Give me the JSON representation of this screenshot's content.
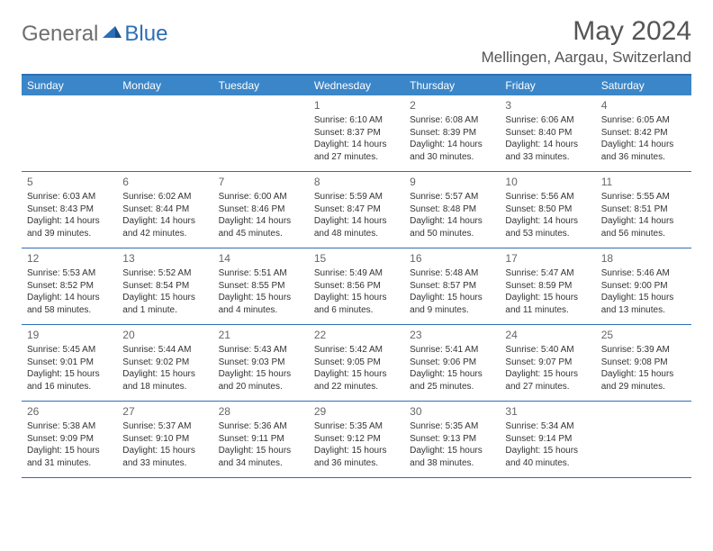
{
  "logo": {
    "part1": "General",
    "part2": "Blue"
  },
  "title": "May 2024",
  "location": "Mellingen, Aargau, Switzerland",
  "colors": {
    "header_bg": "#3b86c8",
    "border": "#2d6fb5",
    "logo_gray": "#6e6e6e",
    "logo_blue": "#2d6fb5",
    "text": "#333333",
    "title_text": "#555555"
  },
  "day_names": [
    "Sunday",
    "Monday",
    "Tuesday",
    "Wednesday",
    "Thursday",
    "Friday",
    "Saturday"
  ],
  "weeks": [
    [
      {
        "n": "",
        "sr": "",
        "ss": "",
        "dl": ""
      },
      {
        "n": "",
        "sr": "",
        "ss": "",
        "dl": ""
      },
      {
        "n": "",
        "sr": "",
        "ss": "",
        "dl": ""
      },
      {
        "n": "1",
        "sr": "Sunrise: 6:10 AM",
        "ss": "Sunset: 8:37 PM",
        "dl": "Daylight: 14 hours and 27 minutes."
      },
      {
        "n": "2",
        "sr": "Sunrise: 6:08 AM",
        "ss": "Sunset: 8:39 PM",
        "dl": "Daylight: 14 hours and 30 minutes."
      },
      {
        "n": "3",
        "sr": "Sunrise: 6:06 AM",
        "ss": "Sunset: 8:40 PM",
        "dl": "Daylight: 14 hours and 33 minutes."
      },
      {
        "n": "4",
        "sr": "Sunrise: 6:05 AM",
        "ss": "Sunset: 8:42 PM",
        "dl": "Daylight: 14 hours and 36 minutes."
      }
    ],
    [
      {
        "n": "5",
        "sr": "Sunrise: 6:03 AM",
        "ss": "Sunset: 8:43 PM",
        "dl": "Daylight: 14 hours and 39 minutes."
      },
      {
        "n": "6",
        "sr": "Sunrise: 6:02 AM",
        "ss": "Sunset: 8:44 PM",
        "dl": "Daylight: 14 hours and 42 minutes."
      },
      {
        "n": "7",
        "sr": "Sunrise: 6:00 AM",
        "ss": "Sunset: 8:46 PM",
        "dl": "Daylight: 14 hours and 45 minutes."
      },
      {
        "n": "8",
        "sr": "Sunrise: 5:59 AM",
        "ss": "Sunset: 8:47 PM",
        "dl": "Daylight: 14 hours and 48 minutes."
      },
      {
        "n": "9",
        "sr": "Sunrise: 5:57 AM",
        "ss": "Sunset: 8:48 PM",
        "dl": "Daylight: 14 hours and 50 minutes."
      },
      {
        "n": "10",
        "sr": "Sunrise: 5:56 AM",
        "ss": "Sunset: 8:50 PM",
        "dl": "Daylight: 14 hours and 53 minutes."
      },
      {
        "n": "11",
        "sr": "Sunrise: 5:55 AM",
        "ss": "Sunset: 8:51 PM",
        "dl": "Daylight: 14 hours and 56 minutes."
      }
    ],
    [
      {
        "n": "12",
        "sr": "Sunrise: 5:53 AM",
        "ss": "Sunset: 8:52 PM",
        "dl": "Daylight: 14 hours and 58 minutes."
      },
      {
        "n": "13",
        "sr": "Sunrise: 5:52 AM",
        "ss": "Sunset: 8:54 PM",
        "dl": "Daylight: 15 hours and 1 minute."
      },
      {
        "n": "14",
        "sr": "Sunrise: 5:51 AM",
        "ss": "Sunset: 8:55 PM",
        "dl": "Daylight: 15 hours and 4 minutes."
      },
      {
        "n": "15",
        "sr": "Sunrise: 5:49 AM",
        "ss": "Sunset: 8:56 PM",
        "dl": "Daylight: 15 hours and 6 minutes."
      },
      {
        "n": "16",
        "sr": "Sunrise: 5:48 AM",
        "ss": "Sunset: 8:57 PM",
        "dl": "Daylight: 15 hours and 9 minutes."
      },
      {
        "n": "17",
        "sr": "Sunrise: 5:47 AM",
        "ss": "Sunset: 8:59 PM",
        "dl": "Daylight: 15 hours and 11 minutes."
      },
      {
        "n": "18",
        "sr": "Sunrise: 5:46 AM",
        "ss": "Sunset: 9:00 PM",
        "dl": "Daylight: 15 hours and 13 minutes."
      }
    ],
    [
      {
        "n": "19",
        "sr": "Sunrise: 5:45 AM",
        "ss": "Sunset: 9:01 PM",
        "dl": "Daylight: 15 hours and 16 minutes."
      },
      {
        "n": "20",
        "sr": "Sunrise: 5:44 AM",
        "ss": "Sunset: 9:02 PM",
        "dl": "Daylight: 15 hours and 18 minutes."
      },
      {
        "n": "21",
        "sr": "Sunrise: 5:43 AM",
        "ss": "Sunset: 9:03 PM",
        "dl": "Daylight: 15 hours and 20 minutes."
      },
      {
        "n": "22",
        "sr": "Sunrise: 5:42 AM",
        "ss": "Sunset: 9:05 PM",
        "dl": "Daylight: 15 hours and 22 minutes."
      },
      {
        "n": "23",
        "sr": "Sunrise: 5:41 AM",
        "ss": "Sunset: 9:06 PM",
        "dl": "Daylight: 15 hours and 25 minutes."
      },
      {
        "n": "24",
        "sr": "Sunrise: 5:40 AM",
        "ss": "Sunset: 9:07 PM",
        "dl": "Daylight: 15 hours and 27 minutes."
      },
      {
        "n": "25",
        "sr": "Sunrise: 5:39 AM",
        "ss": "Sunset: 9:08 PM",
        "dl": "Daylight: 15 hours and 29 minutes."
      }
    ],
    [
      {
        "n": "26",
        "sr": "Sunrise: 5:38 AM",
        "ss": "Sunset: 9:09 PM",
        "dl": "Daylight: 15 hours and 31 minutes."
      },
      {
        "n": "27",
        "sr": "Sunrise: 5:37 AM",
        "ss": "Sunset: 9:10 PM",
        "dl": "Daylight: 15 hours and 33 minutes."
      },
      {
        "n": "28",
        "sr": "Sunrise: 5:36 AM",
        "ss": "Sunset: 9:11 PM",
        "dl": "Daylight: 15 hours and 34 minutes."
      },
      {
        "n": "29",
        "sr": "Sunrise: 5:35 AM",
        "ss": "Sunset: 9:12 PM",
        "dl": "Daylight: 15 hours and 36 minutes."
      },
      {
        "n": "30",
        "sr": "Sunrise: 5:35 AM",
        "ss": "Sunset: 9:13 PM",
        "dl": "Daylight: 15 hours and 38 minutes."
      },
      {
        "n": "31",
        "sr": "Sunrise: 5:34 AM",
        "ss": "Sunset: 9:14 PM",
        "dl": "Daylight: 15 hours and 40 minutes."
      },
      {
        "n": "",
        "sr": "",
        "ss": "",
        "dl": ""
      }
    ]
  ]
}
